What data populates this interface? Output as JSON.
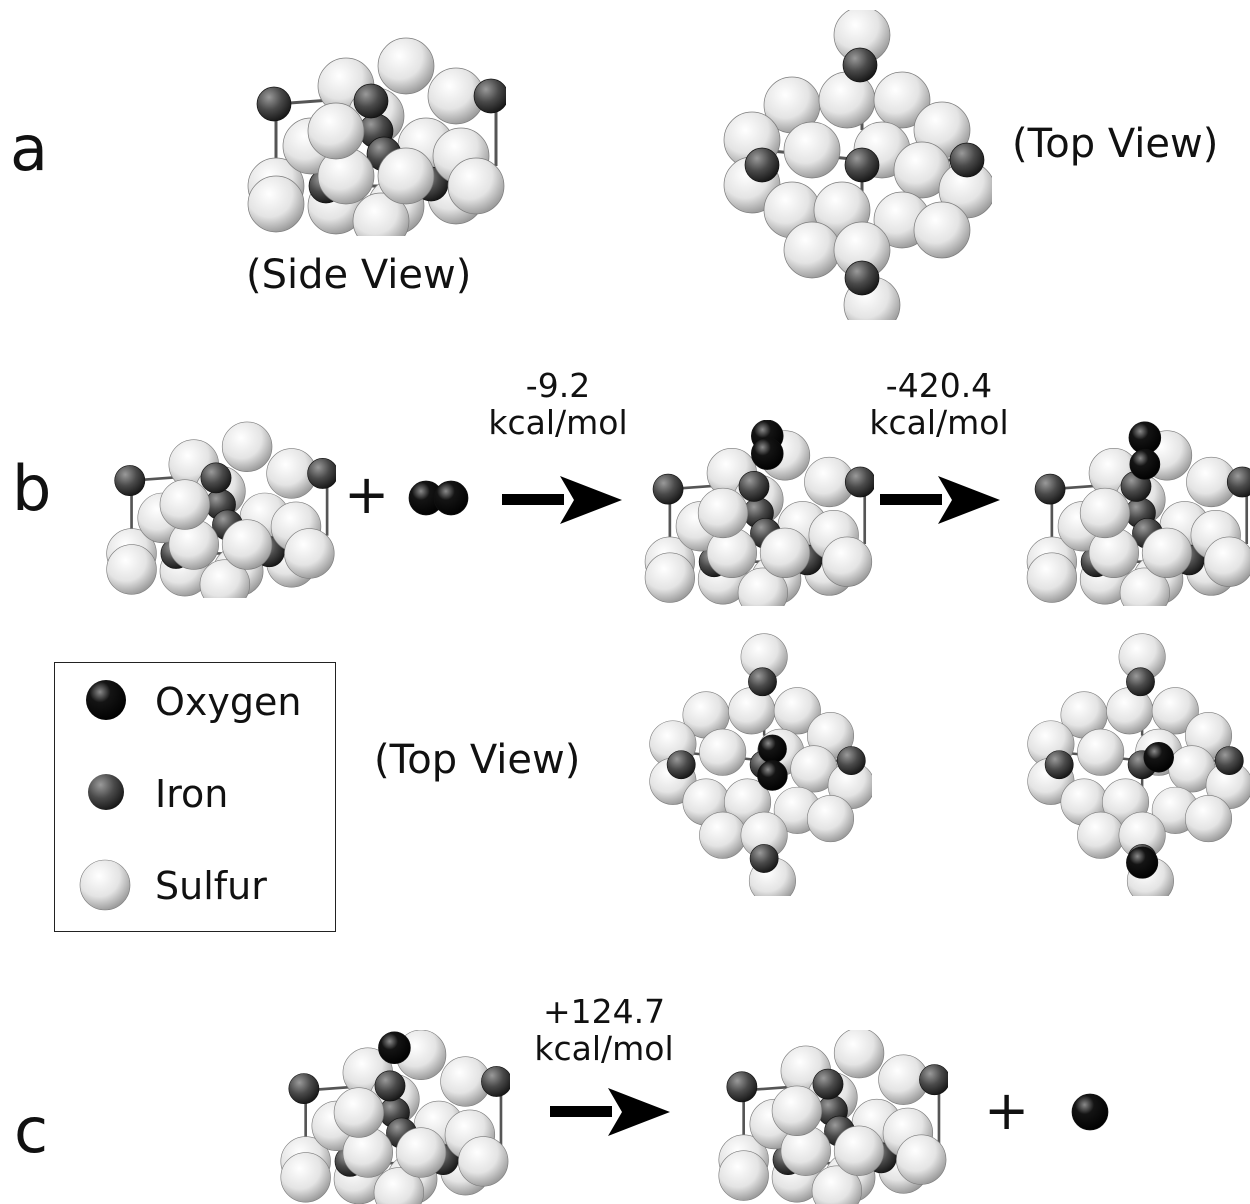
{
  "panels": {
    "a": "a",
    "b": "b",
    "c": "c"
  },
  "views": {
    "side_view": "(Side View)",
    "top_view_a": "(Top View)",
    "top_view_b": "(Top View)"
  },
  "reactions": {
    "b_step1": {
      "value": "-9.2",
      "unit": "kcal/mol"
    },
    "b_step2": {
      "value": "-420.4",
      "unit": "kcal/mol"
    },
    "c_step1": {
      "value": "+124.7",
      "unit": "kcal/mol"
    }
  },
  "plus_sign": "+",
  "legend": [
    {
      "label": "Oxygen",
      "element": "oxygen"
    },
    {
      "label": "Iron",
      "element": "iron"
    },
    {
      "label": "Sulfur",
      "element": "sulfur"
    }
  ],
  "colors": {
    "oxygen": "#000000",
    "iron": "#4a4a4a",
    "sulfur": "#e6e6e6",
    "arrow": "#000000"
  }
}
